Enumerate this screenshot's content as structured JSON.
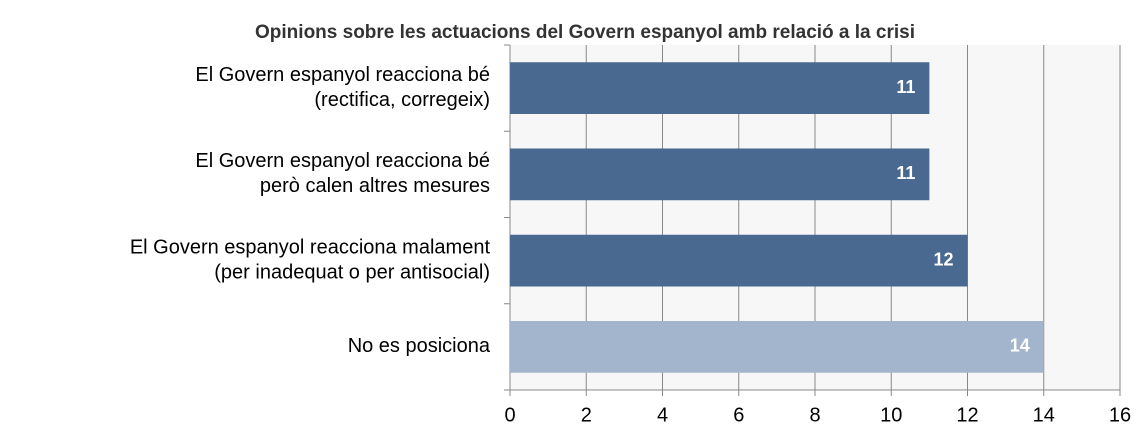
{
  "chart_data": {
    "type": "bar",
    "orientation": "horizontal",
    "title": "Opinions sobre les actuacions del Govern espanyol amb relació a la crisi",
    "categories": [
      [
        "El Govern espanyol reacciona bé",
        "(rectifica, corregeix)"
      ],
      [
        "El Govern espanyol reacciona bé",
        "però calen altres mesures"
      ],
      [
        "El Govern espanyol reacciona malament",
        "(per inadequat o per antisocial)"
      ],
      [
        "No es posiciona"
      ]
    ],
    "values": [
      11,
      11,
      12,
      14
    ],
    "colors": [
      "#4a6990",
      "#4a6990",
      "#4a6990",
      "#a3b5cc"
    ],
    "xlim": [
      0,
      16
    ],
    "xticks": [
      0,
      2,
      4,
      6,
      8,
      10,
      12,
      14,
      16
    ],
    "grid": true
  }
}
